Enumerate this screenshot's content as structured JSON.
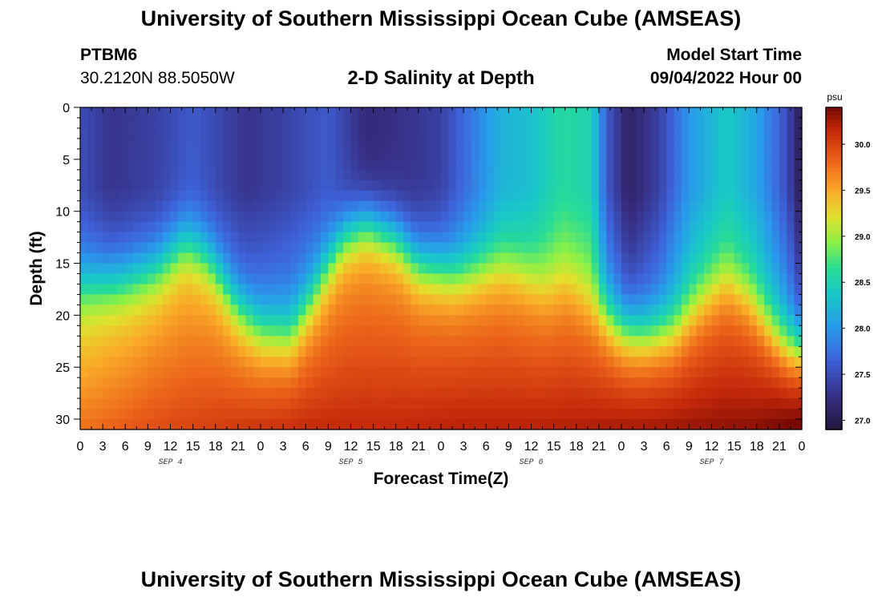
{
  "page": {
    "title": "University of Southern Mississippi Ocean Cube (AMSEAS)",
    "title_repeat": "University of Southern Mississippi Ocean Cube (AMSEAS)",
    "station_id": "PTBM6",
    "station_coords": "30.2120N  88.5050W",
    "subtitle": "2-D Salinity at Depth",
    "model_start_label": "Model Start Time",
    "model_start_value": "09/04/2022 Hour 00"
  },
  "chart_data": {
    "type": "heatmap",
    "title": "2-D Salinity at Depth",
    "xlabel": "Forecast Time(Z)",
    "ylabel": "Depth (ft)",
    "x_range_hours": [
      0,
      96
    ],
    "ylim": [
      0,
      31
    ],
    "x_tick_labels": [
      "0",
      "3",
      "6",
      "9",
      "12",
      "15",
      "18",
      "21",
      "0",
      "3",
      "6",
      "9",
      "12",
      "15",
      "18",
      "21",
      "0",
      "3",
      "6",
      "9",
      "12",
      "15",
      "18",
      "21",
      "0",
      "3",
      "6",
      "9",
      "12",
      "15",
      "18",
      "21",
      "0"
    ],
    "date_labels": [
      {
        "label": "SEP 4",
        "hour": 12
      },
      {
        "label": "SEP 5",
        "hour": 36
      },
      {
        "label": "SEP 6",
        "hour": 60
      },
      {
        "label": "SEP 7",
        "hour": 84
      }
    ],
    "y_ticks": [
      0,
      5,
      10,
      15,
      20,
      25,
      30
    ],
    "colorbar": {
      "unit": "psu",
      "min": 26.9,
      "max": 30.4,
      "ticks": [
        "27.0",
        "27.5",
        "28.0",
        "28.5",
        "29.0",
        "29.5",
        "30.0"
      ]
    },
    "halocline_depth_ft": {
      "hours": [
        0,
        6,
        10,
        14,
        17,
        21,
        24,
        28,
        31,
        35,
        38,
        42,
        45,
        50,
        53,
        56,
        58,
        62,
        65,
        68,
        72,
        75,
        79,
        83,
        86,
        89,
        92,
        94,
        96
      ],
      "depth": [
        17,
        16.5,
        15.5,
        13,
        14.5,
        19,
        21,
        21.5,
        18,
        12.5,
        11,
        12.5,
        15,
        16,
        15.5,
        15,
        15.5,
        17,
        16.5,
        18.5,
        21,
        21.5,
        21,
        18,
        16.5,
        18,
        21,
        22.5,
        23
      ]
    },
    "surface_salinity_psu": {
      "hours": [
        0,
        4,
        10,
        15,
        22,
        27,
        33,
        38,
        44,
        48,
        52,
        56,
        60,
        64,
        68,
        70,
        73,
        77,
        81,
        86,
        90,
        94,
        96
      ],
      "value": [
        27.5,
        27.3,
        27.4,
        27.6,
        27.3,
        27.4,
        27.6,
        27.2,
        27.3,
        27.4,
        27.8,
        28.2,
        28.3,
        28.6,
        28.5,
        27.6,
        27.1,
        27.4,
        28.0,
        28.4,
        28.1,
        27.5,
        27.0
      ]
    },
    "bottom_salinity_psu": {
      "hours": [
        0,
        10,
        20,
        30,
        40,
        50,
        60,
        70,
        80,
        90,
        96
      ],
      "value": [
        29.6,
        29.8,
        29.9,
        30.0,
        30.0,
        30.05,
        30.05,
        30.1,
        30.15,
        30.2,
        30.35
      ]
    }
  }
}
